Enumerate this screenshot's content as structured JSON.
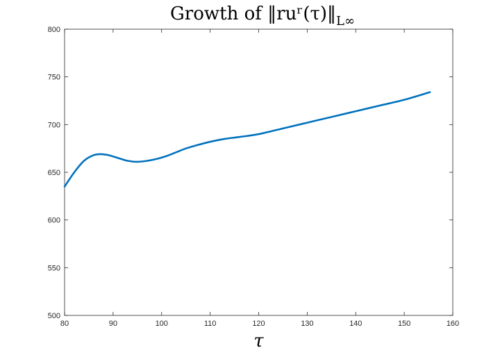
{
  "chart_data": {
    "type": "line",
    "title": "Growth of ‖ruʳ(τ)‖",
    "title_subscript": "L∞",
    "xlabel": "τ",
    "ylabel": "",
    "xlim": [
      80,
      160
    ],
    "ylim": [
      500,
      800
    ],
    "xticks": [
      80,
      90,
      100,
      110,
      120,
      130,
      140,
      150,
      160
    ],
    "yticks": [
      500,
      550,
      600,
      650,
      700,
      750,
      800
    ],
    "grid": false,
    "series": [
      {
        "color": "#0072bd",
        "x": [
          80,
          82,
          84,
          86,
          87.5,
          89,
          91,
          93,
          95,
          97,
          99,
          101,
          103,
          105,
          107,
          110,
          113,
          116,
          120,
          125,
          130,
          135,
          140,
          145,
          150,
          155.3
        ],
        "y": [
          635,
          650,
          662,
          668,
          669,
          668,
          665,
          662,
          661,
          662,
          664,
          667,
          671,
          675,
          678,
          682,
          685,
          687,
          690,
          696,
          702,
          708,
          714,
          720,
          726,
          734
        ]
      }
    ]
  }
}
